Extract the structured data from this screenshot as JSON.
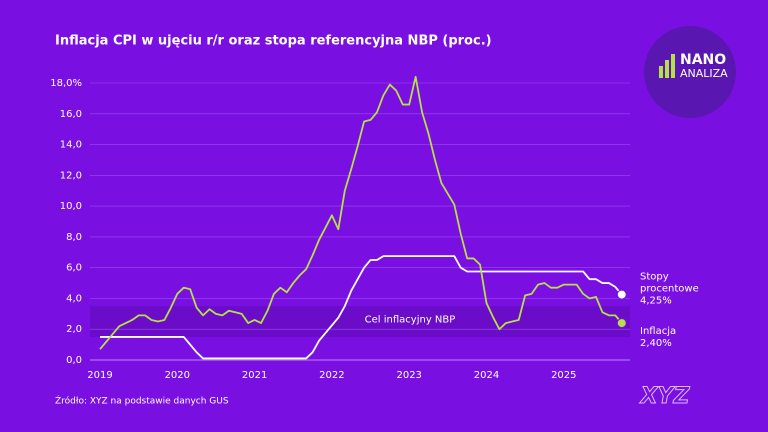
{
  "chart_data": {
    "type": "line",
    "title": "Inflacja CPI w ujęciu r/r oraz stopa referencyjna NBP (proc.)",
    "source": "Źródło: XYZ na podstawie danych GUS",
    "brand": {
      "line1": "NANO",
      "line2": "ANALIZA",
      "watermark": "XYZ"
    },
    "categories": [
      "2019",
      null,
      null,
      null,
      null,
      null,
      null,
      null,
      null,
      null,
      null,
      null,
      "2020",
      null,
      null,
      null,
      null,
      null,
      null,
      null,
      null,
      null,
      null,
      null,
      "2021",
      null,
      null,
      null,
      null,
      null,
      null,
      null,
      null,
      null,
      null,
      null,
      "2022",
      null,
      null,
      null,
      null,
      null,
      null,
      null,
      null,
      null,
      null,
      null,
      "2023",
      null,
      null,
      null,
      null,
      null,
      null,
      null,
      null,
      null,
      null,
      null,
      "2024",
      null,
      null,
      null,
      null,
      null,
      null,
      null,
      null,
      null,
      null,
      null,
      "2025",
      null,
      null,
      null,
      null,
      null,
      null,
      null,
      null,
      null
    ],
    "series": [
      {
        "name": "Stopy procentowe",
        "color": "#ffffff",
        "end_label": "4,25%",
        "values": [
          1.5,
          1.5,
          1.5,
          1.5,
          1.5,
          1.5,
          1.5,
          1.5,
          1.5,
          1.5,
          1.5,
          1.5,
          1.5,
          1.5,
          1.0,
          0.5,
          0.1,
          0.1,
          0.1,
          0.1,
          0.1,
          0.1,
          0.1,
          0.1,
          0.1,
          0.1,
          0.1,
          0.1,
          0.1,
          0.1,
          0.1,
          0.1,
          0.1,
          0.5,
          1.25,
          1.75,
          2.25,
          2.75,
          3.5,
          4.5,
          5.25,
          6.0,
          6.5,
          6.5,
          6.75,
          6.75,
          6.75,
          6.75,
          6.75,
          6.75,
          6.75,
          6.75,
          6.75,
          6.75,
          6.75,
          6.75,
          6.0,
          5.75,
          5.75,
          5.75,
          5.75,
          5.75,
          5.75,
          5.75,
          5.75,
          5.75,
          5.75,
          5.75,
          5.75,
          5.75,
          5.75,
          5.75,
          5.75,
          5.75,
          5.75,
          5.75,
          5.25,
          5.25,
          5.0,
          5.0,
          4.75,
          4.25
        ]
      },
      {
        "name": "Inflacja",
        "color": "#b5e04a",
        "end_label": "2,40%",
        "values": [
          0.7,
          1.2,
          1.7,
          2.2,
          2.4,
          2.6,
          2.9,
          2.9,
          2.6,
          2.5,
          2.6,
          3.4,
          4.3,
          4.7,
          4.6,
          3.4,
          2.9,
          3.3,
          3.0,
          2.9,
          3.2,
          3.1,
          3.0,
          2.4,
          2.6,
          2.4,
          3.2,
          4.3,
          4.7,
          4.4,
          5.0,
          5.5,
          5.9,
          6.8,
          7.8,
          8.6,
          9.4,
          8.5,
          11.0,
          12.4,
          13.9,
          15.5,
          15.6,
          16.1,
          17.2,
          17.9,
          17.5,
          16.6,
          16.6,
          18.4,
          16.1,
          14.7,
          13.0,
          11.5,
          10.8,
          10.1,
          8.2,
          6.6,
          6.6,
          6.2,
          3.7,
          2.8,
          2.0,
          2.4,
          2.5,
          2.6,
          4.2,
          4.3,
          4.9,
          5.0,
          4.7,
          4.7,
          4.9,
          4.9,
          4.9,
          4.3,
          4.0,
          4.1,
          3.1,
          2.9,
          2.9,
          2.4
        ]
      }
    ],
    "band": {
      "label": "Cel inflacyjny NBP",
      "range": [
        1.5,
        3.5
      ],
      "color": "#6a0cc8"
    },
    "ylim": [
      0,
      18
    ],
    "yticks": [
      {
        "value": 0,
        "label": "0,0"
      },
      {
        "value": 2,
        "label": "2,0"
      },
      {
        "value": 4,
        "label": "4,0"
      },
      {
        "value": 6,
        "label": "6,0"
      },
      {
        "value": 8,
        "label": "8,0"
      },
      {
        "value": 10,
        "label": "10,0"
      },
      {
        "value": 12,
        "label": "12,0"
      },
      {
        "value": 14,
        "label": "14,0"
      },
      {
        "value": 16,
        "label": "16,0"
      },
      {
        "value": 18,
        "label": "18,0%"
      }
    ],
    "grid": true
  }
}
